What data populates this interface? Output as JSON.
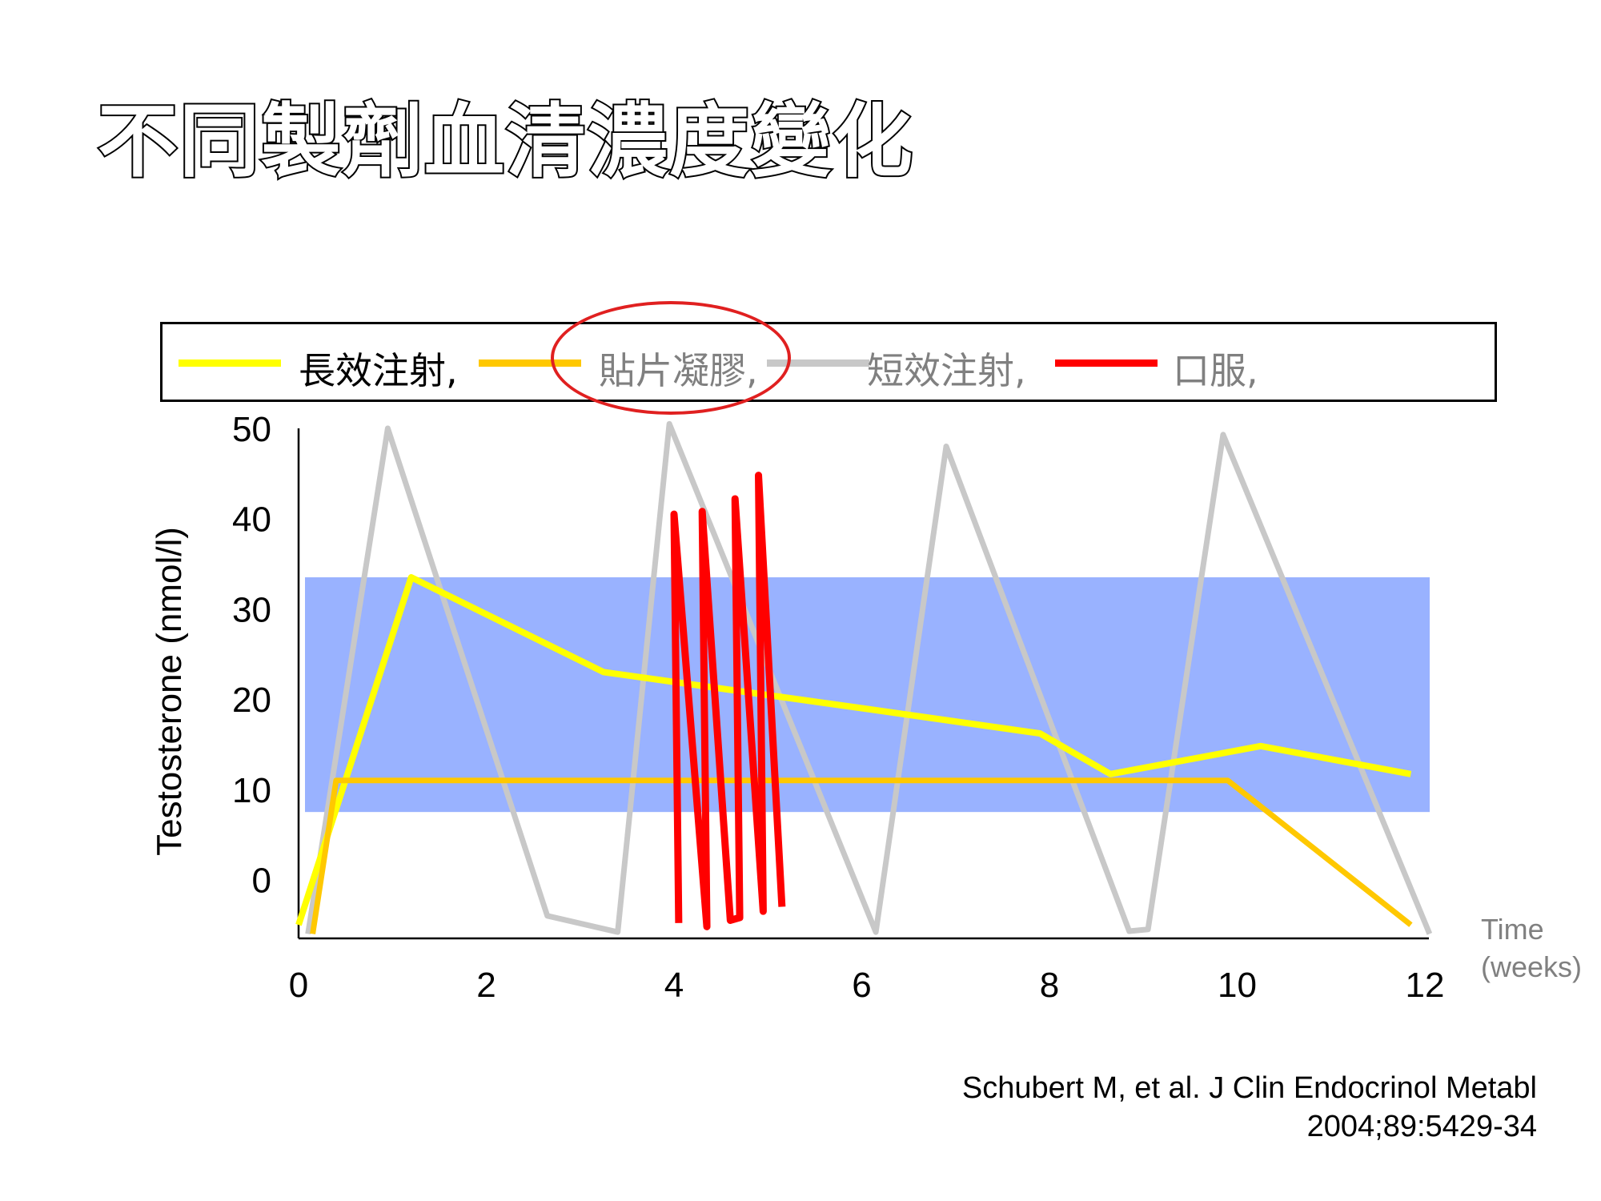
{
  "slide": {
    "title": "不同製劑血清濃度變化",
    "citation_line1": "Schubert M, et al. J Clin Endocrinol Metabl",
    "citation_line2": "2004;89:5429-34"
  },
  "legend": [
    {
      "label": "長效注射,",
      "color": "#ffff00",
      "text_color": "#000000"
    },
    {
      "label": "貼片凝膠,",
      "color": "#ffc800",
      "text_color": "#808080"
    },
    {
      "label": "短效注射,",
      "color": "#c8c8c8",
      "text_color": "#808080"
    },
    {
      "label": "口服,",
      "color": "#ff0000",
      "text_color": "#808080"
    }
  ],
  "chart_data": {
    "type": "line",
    "ylabel": "Testosterone (nmol/l)",
    "xlabel": "Time\n(weeks)",
    "xlabel_lines": [
      "Time",
      "(weeks)"
    ],
    "x_ticks": [
      0,
      2,
      4,
      6,
      8,
      10,
      12
    ],
    "y_ticks": [
      0,
      10,
      20,
      30,
      40,
      50
    ],
    "xlim": [
      0,
      12
    ],
    "ylim": [
      -6.5,
      50
    ],
    "normal_range": {
      "min": 7.5,
      "max": 33.5,
      "color": "#99b2ff"
    },
    "grid": false,
    "legend_position": "top",
    "series": [
      {
        "name": "短效注射",
        "color": "#c8c8c8",
        "points": [
          [
            0.1,
            -6
          ],
          [
            0.95,
            50
          ],
          [
            2.65,
            -4
          ],
          [
            3.4,
            -5.8
          ],
          [
            3.95,
            50.5
          ],
          [
            6.15,
            -5.8
          ],
          [
            6.9,
            48
          ],
          [
            8.85,
            -5.7
          ],
          [
            9.05,
            -5.5
          ],
          [
            9.85,
            49.3
          ],
          [
            12.05,
            -6
          ]
        ]
      },
      {
        "name": "長效注射",
        "color": "#ffff00",
        "points": [
          [
            0,
            -5
          ],
          [
            1.2,
            33.5
          ],
          [
            3.25,
            23
          ],
          [
            6.0,
            19
          ],
          [
            7.9,
            16.2
          ],
          [
            8.65,
            11.7
          ],
          [
            10.25,
            14.8
          ],
          [
            11.85,
            11.7
          ]
        ]
      },
      {
        "name": "貼片凝膠",
        "color": "#ffc800",
        "points": [
          [
            0.15,
            -6
          ],
          [
            0.4,
            11
          ],
          [
            9.9,
            11
          ],
          [
            11.85,
            -5
          ]
        ]
      },
      {
        "name": "口服",
        "color": "#ff0000",
        "points": [
          [
            4.05,
            -4.8
          ],
          [
            4.0,
            40.5
          ],
          [
            4.35,
            -5.2
          ],
          [
            4.3,
            40.8
          ],
          [
            4.6,
            -4.5
          ],
          [
            4.7,
            -4.2
          ],
          [
            4.65,
            42.2
          ],
          [
            4.95,
            -3.5
          ],
          [
            4.9,
            44.8
          ],
          [
            5.15,
            -3
          ]
        ]
      }
    ]
  }
}
